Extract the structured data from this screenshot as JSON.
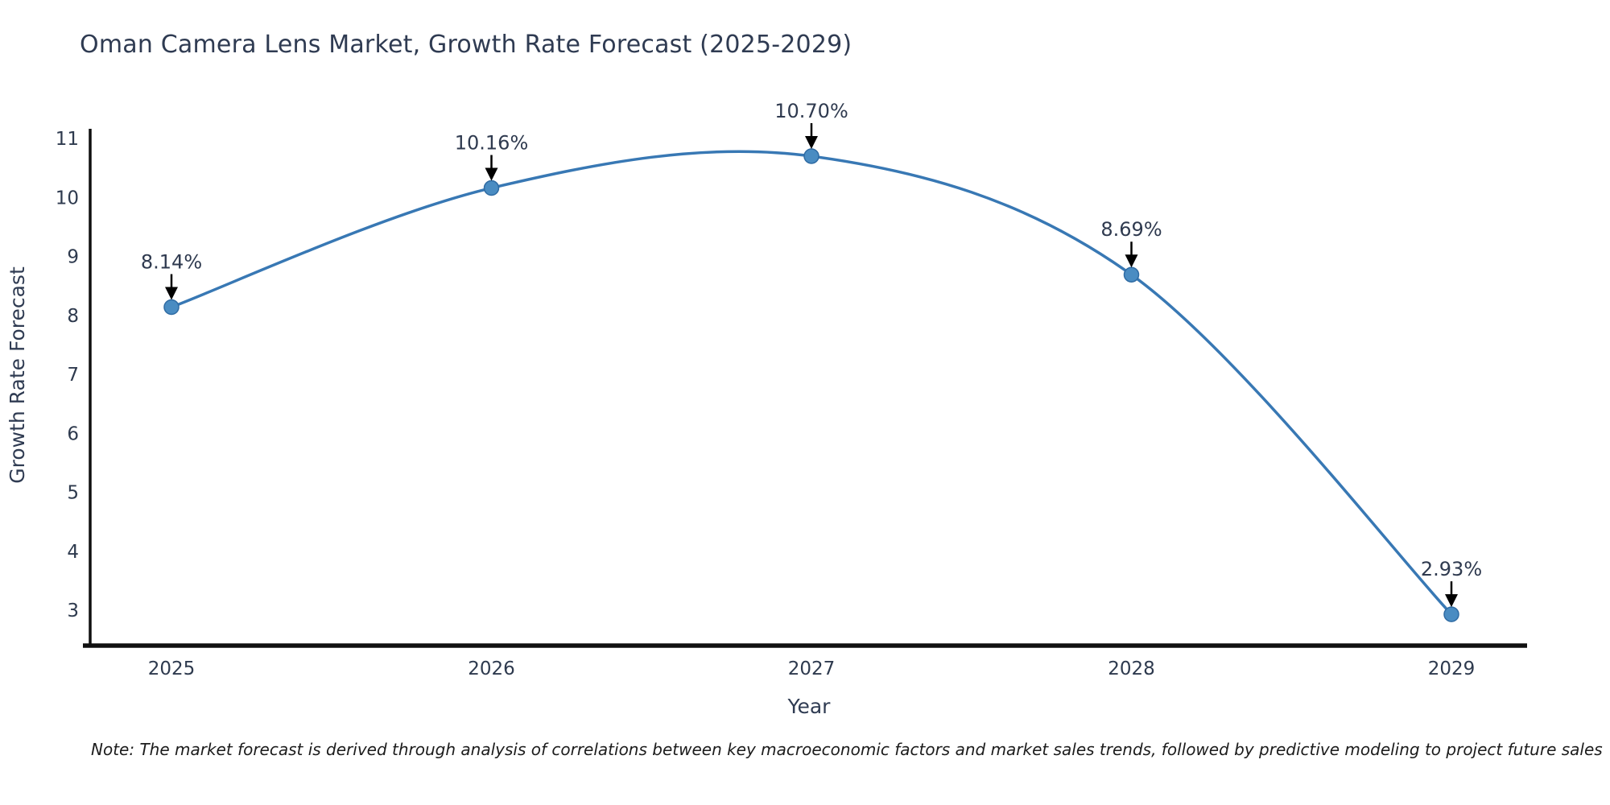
{
  "page": {
    "background": "#ffffff"
  },
  "chart_data": {
    "type": "line",
    "title": "Oman Camera Lens Market, Growth Rate Forecast (2025-2029)",
    "xlabel": "Year",
    "ylabel": "Growth Rate Forecast",
    "x": [
      2025,
      2026,
      2027,
      2028,
      2029
    ],
    "y": [
      8.14,
      10.16,
      10.7,
      8.69,
      2.93
    ],
    "point_labels": [
      "8.14%",
      "10.16%",
      "10.70%",
      "8.69%",
      "2.93%"
    ],
    "xticks": [
      "2025",
      "2026",
      "2027",
      "2028",
      "2029"
    ],
    "yticks": [
      "3",
      "4",
      "5",
      "6",
      "7",
      "8",
      "9",
      "10",
      "11"
    ],
    "ytick_values": [
      3,
      4,
      5,
      6,
      7,
      8,
      9,
      10,
      11
    ],
    "ylim": [
      2.4,
      11.16
    ],
    "line_shape": "spline",
    "grid": false,
    "legend_position": "none",
    "colors": {
      "line": "#3878b4",
      "marker_fill": "#4a8cc2",
      "marker_edge": "#2f6ba3",
      "axis_line": "#101010",
      "tick_text": "#2e3a4e",
      "title_text": "#2f3b52",
      "annotation_text": "#2f3a4f",
      "arrow": "#000000"
    }
  },
  "note": {
    "text": "Note: The market forecast is derived through analysis of correlations between key macroeconomic factors and market sales trends, followed by predictive modeling to project future sales"
  }
}
